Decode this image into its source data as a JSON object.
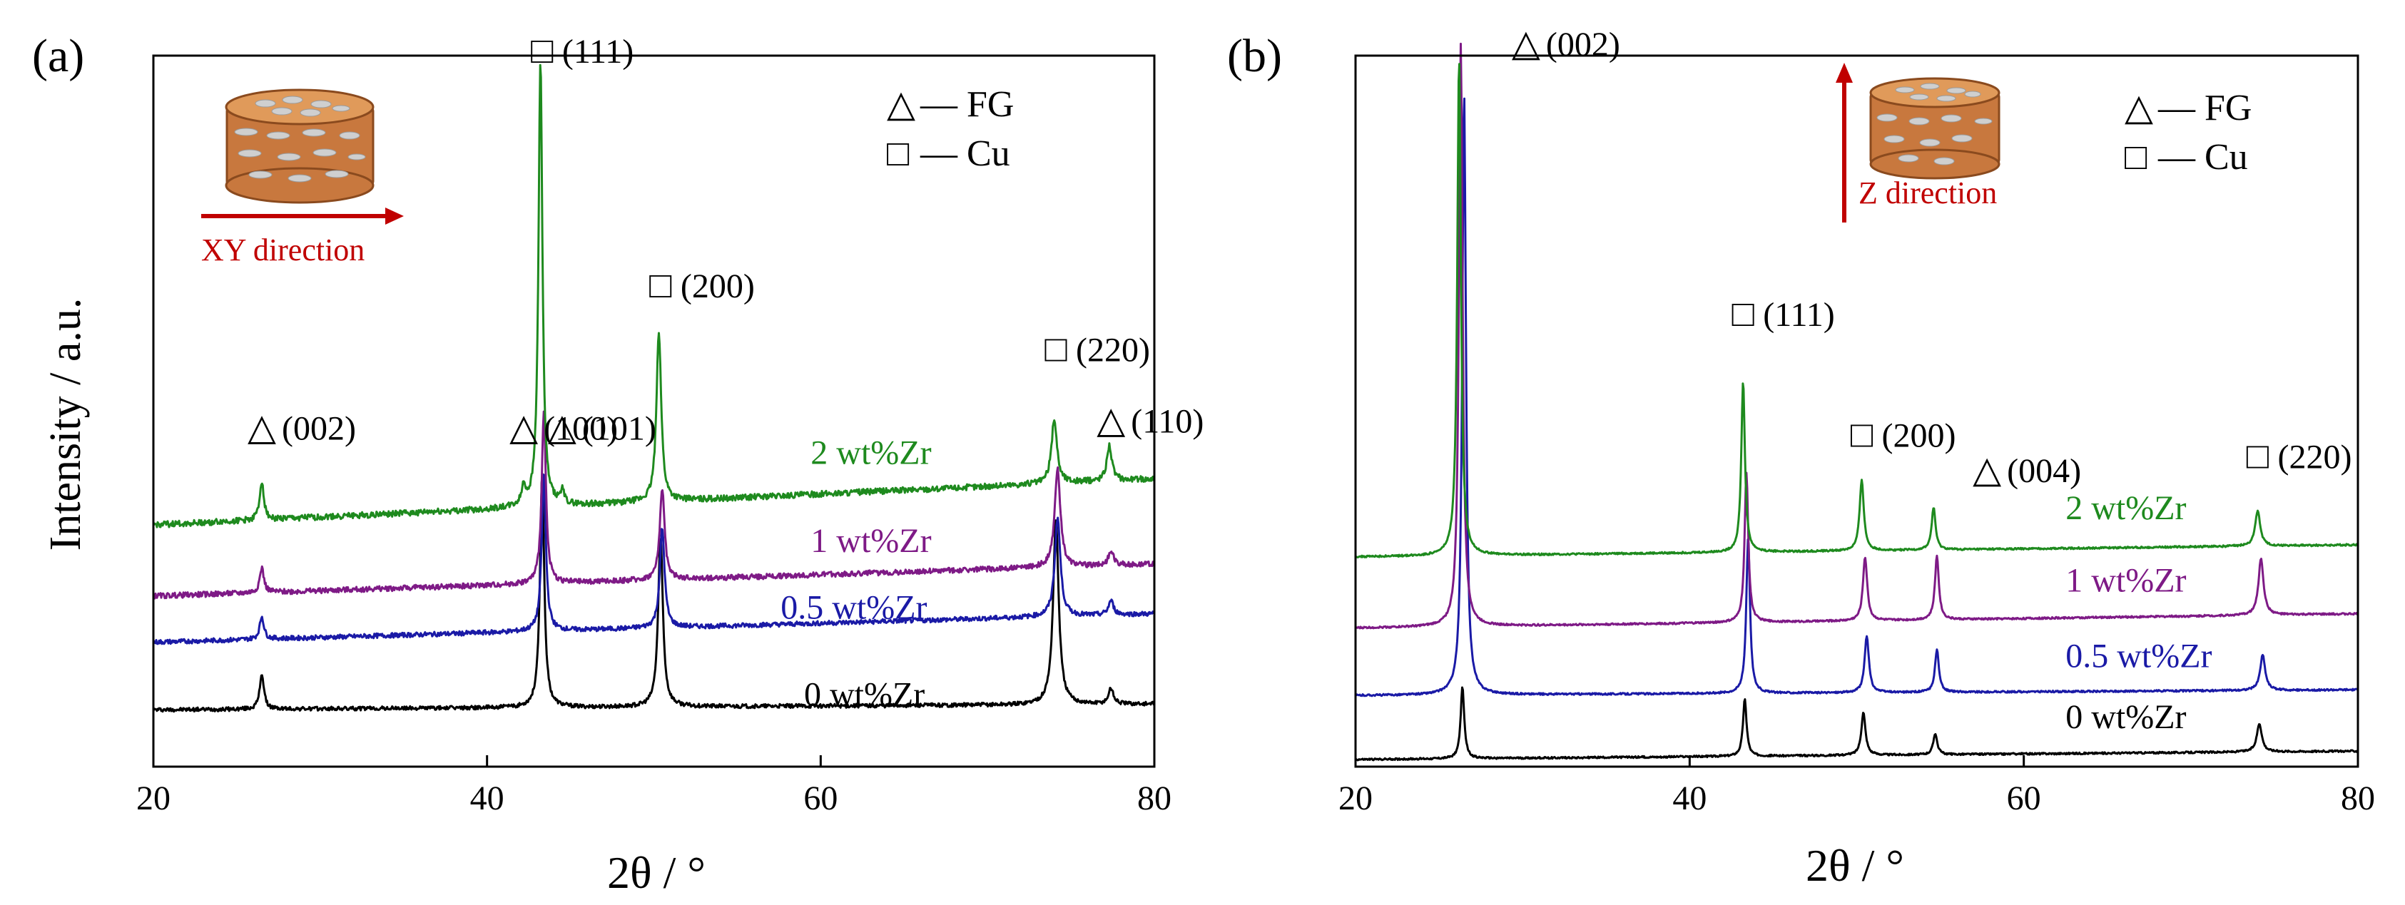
{
  "colors": {
    "axis": "#000000",
    "zr0": "#000000",
    "zr05": "#1a1aa6",
    "zr1": "#7e1a86",
    "zr2": "#1e8a1e",
    "arrow": "#c00000",
    "copper_side": "#c8783e",
    "copper_top": "#e09a5a",
    "flake": "#c8c8c8"
  },
  "chart_data": [
    {
      "panel_label": "(a)",
      "type": "line",
      "title": "",
      "xlabel": "2θ / °",
      "ylabel": "Intensity / a.u.",
      "xlim": [
        20,
        80
      ],
      "ylim": [
        0,
        100
      ],
      "xticks": [
        20,
        40,
        60,
        80
      ],
      "xtick_labels": [
        "20",
        "40",
        "60",
        "80"
      ],
      "direction_label": "XY direction",
      "legend": {
        "placement": "top-right",
        "entries": [
          {
            "symbol": "△",
            "text": "— FG"
          },
          {
            "symbol": "□",
            "text": "— Cu"
          }
        ]
      },
      "peak_labels": [
        {
          "symbol": "△",
          "text": "(002)",
          "x": 26.5,
          "y": 46
        },
        {
          "symbol": "△",
          "text": "(100)",
          "x": 42.2,
          "y": 46
        },
        {
          "symbol": "△",
          "text": "(101)",
          "x": 44.5,
          "y": 46
        },
        {
          "symbol": "□",
          "text": "(111)",
          "x": 43.3,
          "y": 99
        },
        {
          "symbol": "□",
          "text": "(200)",
          "x": 50.4,
          "y": 66
        },
        {
          "symbol": "□",
          "text": "(220)",
          "x": 74.1,
          "y": 57
        },
        {
          "symbol": "△",
          "text": "(110)",
          "x": 77.4,
          "y": 47
        }
      ],
      "series": [
        {
          "name": "0 wt%Zr",
          "color": "#000000",
          "base_start": 8.0,
          "base_end": 8.8,
          "label_pos": [
            59,
            8.6
          ],
          "peaks": [
            {
              "x": 26.5,
              "h": 5.0,
              "w": 0.15
            },
            {
              "x": 43.3,
              "h": 33,
              "w": 0.15
            },
            {
              "x": 50.4,
              "h": 24,
              "w": 0.17
            },
            {
              "x": 74.1,
              "h": 26,
              "w": 0.2
            },
            {
              "x": 77.4,
              "h": 2.2,
              "w": 0.18
            }
          ]
        },
        {
          "name": "0.5 wt%Zr",
          "color": "#1a1aa6",
          "base_start": 17.5,
          "base_end": 21.5,
          "label_pos": [
            57.6,
            20.8
          ],
          "peaks": [
            {
              "x": 26.5,
              "h": 3.2,
              "w": 0.15
            },
            {
              "x": 43.4,
              "h": 22,
              "w": 0.15
            },
            {
              "x": 50.5,
              "h": 14,
              "w": 0.17
            },
            {
              "x": 74.2,
              "h": 14,
              "w": 0.2
            },
            {
              "x": 77.4,
              "h": 2,
              "w": 0.18
            }
          ]
        },
        {
          "name": "1 wt%Zr",
          "color": "#7e1a86",
          "base_start": 24.0,
          "base_end": 28.5,
          "label_pos": [
            59.4,
            30.2
          ],
          "peaks": [
            {
              "x": 26.5,
              "h": 3.5,
              "w": 0.15
            },
            {
              "x": 43.4,
              "h": 24,
              "w": 0.15
            },
            {
              "x": 50.5,
              "h": 13,
              "w": 0.17
            },
            {
              "x": 74.2,
              "h": 14,
              "w": 0.2
            },
            {
              "x": 77.4,
              "h": 2,
              "w": 0.18
            }
          ]
        },
        {
          "name": "2 wt%Zr",
          "color": "#1e8a1e",
          "base_start": 34.0,
          "base_end": 40.5,
          "label_pos": [
            59.4,
            42.6
          ],
          "peaks": [
            {
              "x": 26.5,
              "h": 5.5,
              "w": 0.15
            },
            {
              "x": 42.2,
              "h": 2.5,
              "w": 0.15
            },
            {
              "x": 43.2,
              "h": 63,
              "w": 0.14
            },
            {
              "x": 44.5,
              "h": 1.8,
              "w": 0.15
            },
            {
              "x": 50.3,
              "h": 24,
              "w": 0.17
            },
            {
              "x": 74.0,
              "h": 9,
              "w": 0.2
            },
            {
              "x": 77.3,
              "h": 5,
              "w": 0.18
            }
          ]
        }
      ]
    },
    {
      "panel_label": "(b)",
      "type": "line",
      "title": "",
      "xlabel": "2θ / °",
      "ylabel": "",
      "xlim": [
        20,
        80
      ],
      "ylim": [
        0,
        100
      ],
      "xticks": [
        20,
        40,
        60,
        80
      ],
      "xtick_labels": [
        "20",
        "40",
        "60",
        "80"
      ],
      "direction_label": "Z direction",
      "legend": {
        "placement": "top-right",
        "entries": [
          {
            "symbol": "△",
            "text": "— FG"
          },
          {
            "symbol": "□",
            "text": "— Cu"
          }
        ]
      },
      "peak_labels": [
        {
          "symbol": "△",
          "text": "(002)",
          "x": 30.2,
          "y": 100
        },
        {
          "symbol": "□",
          "text": "(111)",
          "x": 43.2,
          "y": 62
        },
        {
          "symbol": "□",
          "text": "(200)",
          "x": 50.3,
          "y": 45
        },
        {
          "symbol": "△",
          "text": "(004)",
          "x": 57.8,
          "y": 40
        },
        {
          "symbol": "□",
          "text": "(220)",
          "x": 74.0,
          "y": 42
        }
      ],
      "series": [
        {
          "name": "0 wt%Zr",
          "color": "#000000",
          "base_start": 1.0,
          "base_end": 2.2,
          "label_pos": [
            62.5,
            5.4
          ],
          "peaks": [
            {
              "x": 26.4,
              "h": 10,
              "w": 0.13
            },
            {
              "x": 43.3,
              "h": 8,
              "w": 0.13
            },
            {
              "x": 50.4,
              "h": 6,
              "w": 0.15
            },
            {
              "x": 54.7,
              "h": 3,
              "w": 0.14
            },
            {
              "x": 74.1,
              "h": 4,
              "w": 0.18
            }
          ]
        },
        {
          "name": "0.5 wt%Zr",
          "color": "#1a1aa6",
          "base_start": 10.0,
          "base_end": 10.8,
          "label_pos": [
            62.5,
            14.0
          ],
          "peaks": [
            {
              "x": 26.5,
              "h": 85,
              "w": 0.13
            },
            {
              "x": 43.5,
              "h": 22,
              "w": 0.13
            },
            {
              "x": 50.6,
              "h": 8,
              "w": 0.15
            },
            {
              "x": 54.8,
              "h": 6,
              "w": 0.14
            },
            {
              "x": 74.3,
              "h": 5,
              "w": 0.18
            }
          ]
        },
        {
          "name": "1 wt%Zr",
          "color": "#7e1a86",
          "base_start": 19.5,
          "base_end": 21.5,
          "label_pos": [
            62.5,
            24.6
          ],
          "peaks": [
            {
              "x": 26.3,
              "h": 82,
              "w": 0.13
            },
            {
              "x": 43.4,
              "h": 21,
              "w": 0.13
            },
            {
              "x": 50.5,
              "h": 9,
              "w": 0.15
            },
            {
              "x": 54.8,
              "h": 9,
              "w": 0.14
            },
            {
              "x": 74.2,
              "h": 8,
              "w": 0.18
            }
          ]
        },
        {
          "name": "2 wt%Zr",
          "color": "#1e8a1e",
          "base_start": 29.5,
          "base_end": 31.2,
          "label_pos": [
            62.5,
            34.8
          ],
          "peaks": [
            {
              "x": 26.2,
              "h": 70,
              "w": 0.13
            },
            {
              "x": 43.2,
              "h": 24,
              "w": 0.13
            },
            {
              "x": 50.3,
              "h": 10,
              "w": 0.15
            },
            {
              "x": 54.6,
              "h": 6,
              "w": 0.14
            },
            {
              "x": 74.0,
              "h": 5,
              "w": 0.18
            }
          ]
        }
      ]
    }
  ]
}
